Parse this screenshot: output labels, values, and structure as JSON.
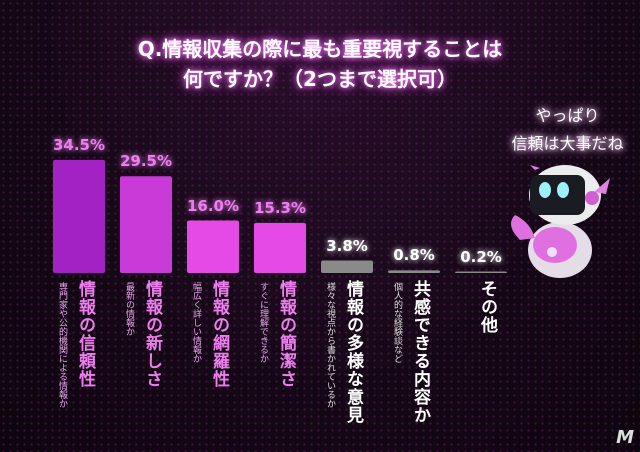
{
  "title": {
    "line1": "Q.情報収集の際に最も重要視することは",
    "line2": "何ですか？（2つまで選択可）"
  },
  "bubble": {
    "line1": "やっぱり",
    "line2": "信頼は大事だね"
  },
  "logo": "M",
  "chart_data": {
    "type": "bar",
    "title": "Q.情報収集の際に最も重要視することは何ですか？（2つまで選択可）",
    "categories": [
      "情報の信頼性",
      "情報の新しさ",
      "情報の網羅性",
      "情報の簡潔さ",
      "情報の多様な意見",
      "共感できる内容か",
      "その他"
    ],
    "subcategories": [
      "専門家や公的機関による情報か",
      "最新の情報か",
      "幅広く詳しい情報か",
      "すぐに理解できるか",
      "様々な視点から書かれているか",
      "個人的な経験談など",
      ""
    ],
    "values": [
      34.5,
      29.5,
      16.0,
      15.3,
      3.8,
      0.8,
      0.2
    ],
    "value_labels": [
      "34.5%",
      "29.5%",
      "16.0%",
      "15.3%",
      "3.8%",
      "0.8%",
      "0.2%"
    ],
    "unit": "%",
    "bar_colors": [
      "#a322c4",
      "#c83bd8",
      "#e64ae6",
      "#e64ae6",
      "#8a8a8a",
      "#8a8a8a",
      "#8a8a8a"
    ],
    "label_colors": [
      "#ee7ef0",
      "#ee7ef0",
      "#ee7ef0",
      "#ee7ef0",
      "#ffffff",
      "#ffffff",
      "#ffffff"
    ],
    "grid": false,
    "legend": "none"
  }
}
